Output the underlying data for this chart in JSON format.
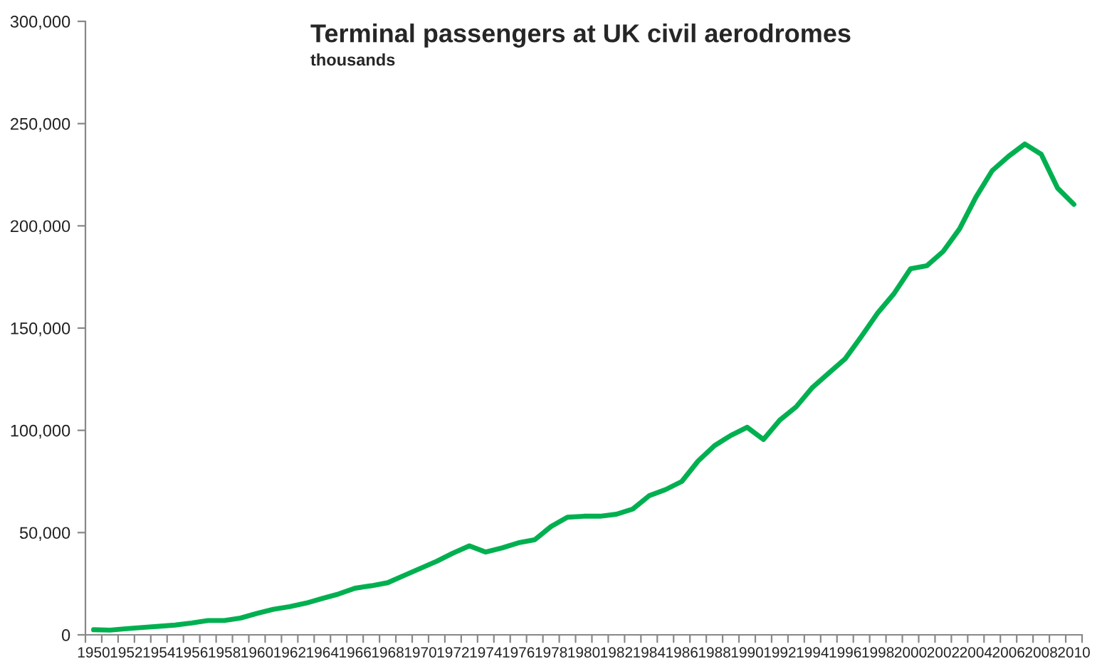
{
  "chart_data": {
    "type": "line",
    "title": "Terminal passengers at UK civil aerodromes",
    "subtitle": "thousands",
    "categories": [
      "1950",
      null,
      "1952",
      null,
      "1954",
      null,
      "1956",
      null,
      "1958",
      null,
      "1960",
      null,
      "1962",
      null,
      "1964",
      null,
      "1966",
      null,
      "1968",
      null,
      "1970",
      null,
      "1972",
      null,
      "1974",
      null,
      "1976",
      null,
      "1978",
      null,
      "1980",
      null,
      "1982",
      null,
      "1984",
      null,
      "1986",
      null,
      "1988",
      null,
      "1990",
      null,
      "1992",
      null,
      "1994",
      null,
      "1996",
      null,
      "1998",
      null,
      "2000",
      null,
      "2002",
      null,
      "2004",
      null,
      "2006",
      null,
      "2008",
      null,
      "2010"
    ],
    "series": [
      {
        "color": "#00b050",
        "values": [
          2500,
          2300,
          3000,
          3600,
          4200,
          4800,
          5800,
          7000,
          7000,
          8200,
          10500,
          12500,
          13800,
          15500,
          17800,
          20000,
          22800,
          24000,
          25500,
          29000,
          32500,
          36000,
          40000,
          43500,
          40500,
          42500,
          45000,
          46500,
          53000,
          57500,
          58000,
          58000,
          59000,
          61500,
          68000,
          71000,
          75000,
          85000,
          92500,
          97500,
          101500,
          95500,
          105000,
          111500,
          121000,
          128000,
          135000,
          146000,
          157500,
          167000,
          179000,
          180500,
          187500,
          198500,
          214000,
          227000,
          234000,
          240000,
          235000,
          218500,
          210500
        ]
      }
    ],
    "ylim": [
      0,
      300000
    ],
    "yticks": [
      0,
      {
        "value": 50000,
        "label": "50,000"
      },
      {
        "value": 100000,
        "label": "100,000"
      },
      {
        "value": 150000,
        "label": "150,000"
      },
      {
        "value": 200000,
        "label": "200,000"
      },
      {
        "value": 250000,
        "label": "250,000"
      },
      {
        "value": 300000,
        "label": "300,000"
      }
    ],
    "grid": false,
    "legend": false,
    "marker": "none",
    "line_style": "solid"
  }
}
